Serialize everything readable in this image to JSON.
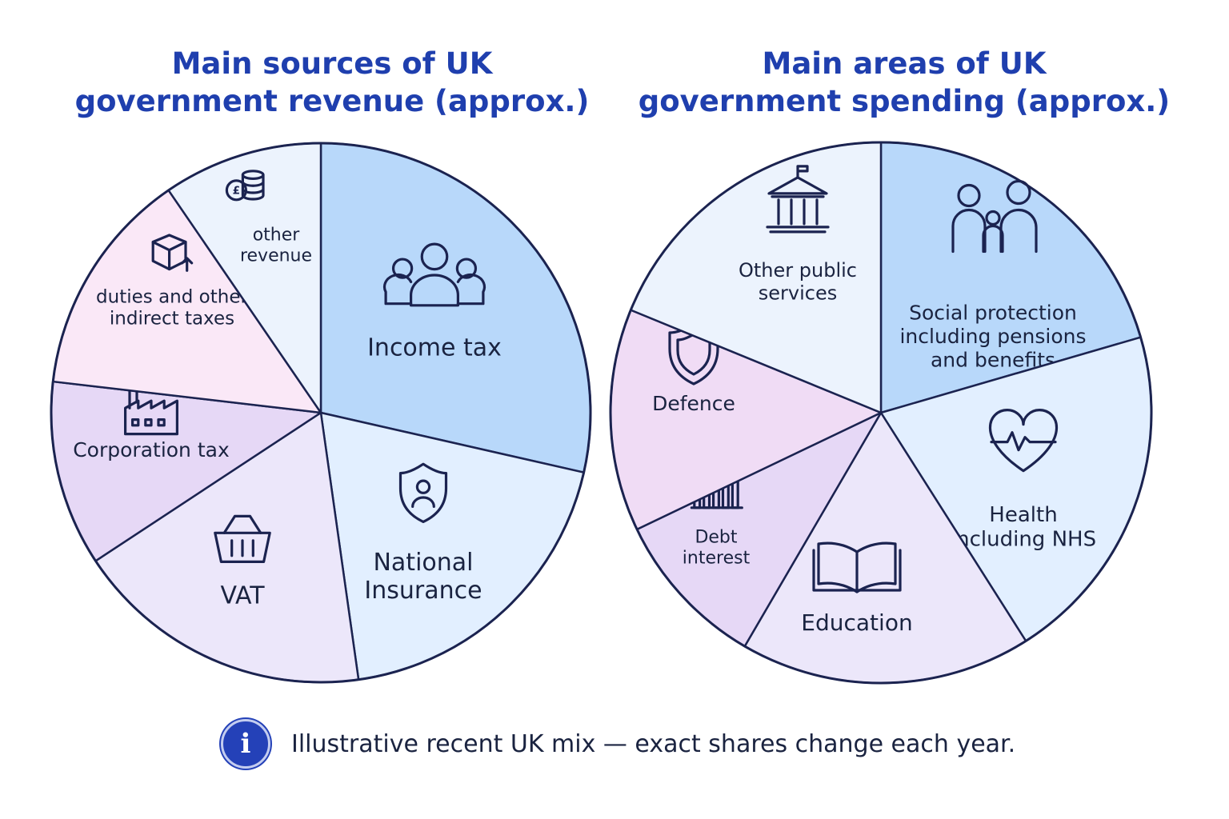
{
  "chart_data": [
    {
      "type": "pie",
      "title": [
        "Main sources of UK",
        "government revenue (approx.)"
      ],
      "slices": [
        {
          "label": [
            "Income tax"
          ],
          "value": 27.5,
          "icon": "people-icon",
          "color": "#b8d8fa"
        },
        {
          "label": [
            "National",
            "Insurance"
          ],
          "value": 18.5,
          "icon": "shield-person-icon",
          "color": "#e2efff"
        },
        {
          "label": [
            "VAT"
          ],
          "value": 17.3,
          "icon": "basket-icon",
          "color": "#ece7fa"
        },
        {
          "label": [
            "Corporation tax"
          ],
          "value": 10.7,
          "icon": "factory-icon",
          "color": "#e6d8f6"
        },
        {
          "label": [
            "duties and other",
            "indirect taxes"
          ],
          "value": 13.1,
          "icon": "box-icon",
          "color": "#fae8f7"
        },
        {
          "label": [
            "other",
            "revenue"
          ],
          "value": 9.2,
          "icon": "coins-icon",
          "color": "#ecf3fd"
        }
      ]
    },
    {
      "type": "pie",
      "title": [
        "Main areas of UK",
        "government spending (approx.)"
      ],
      "slices": [
        {
          "label": [
            "Social protection",
            "including pensions",
            "and benefits"
          ],
          "value": 20.5,
          "icon": "family-icon",
          "color": "#b8d8fa"
        },
        {
          "label": [
            "Health",
            "including NHS"
          ],
          "value": 20.5,
          "icon": "heart-pulse-icon",
          "color": "#e2efff"
        },
        {
          "label": [
            "Education"
          ],
          "value": 17.4,
          "icon": "book-icon",
          "color": "#ece7fa"
        },
        {
          "label": [
            "Debt",
            "interest"
          ],
          "value": 9.5,
          "icon": "bar-chart-icon",
          "color": "#e6d8f6"
        },
        {
          "label": [
            "Defence"
          ],
          "value": 13.3,
          "icon": "shield-icon",
          "color": "#f0dcf5"
        },
        {
          "label": [
            "Other public",
            "services"
          ],
          "value": 18.8,
          "icon": "building-icon",
          "color": "#ecf3fd"
        }
      ]
    }
  ],
  "footer": {
    "icon": "info-icon",
    "glyph": "i",
    "text": "Illustrative recent UK mix — exact shares change each year."
  }
}
